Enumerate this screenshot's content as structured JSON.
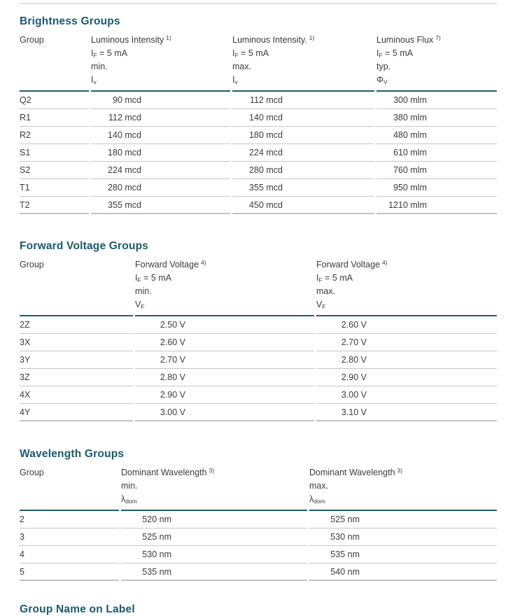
{
  "colors": {
    "heading": "#1b5a6d",
    "header_rule": "#235d6b",
    "row_rule": "#c6c6c6",
    "text": "#3c3c3c",
    "top_rule": "#dfe2ec"
  },
  "bottom_heading": "Group Name on Label",
  "tables": [
    {
      "name": "brightness-groups",
      "title": "Brightness Groups",
      "group_label": "Group",
      "columns": [
        {
          "title": "Luminous Intensity",
          "footnote": "1)",
          "condition": {
            "base": "I",
            "sub": "F",
            "rest": " = 5 mA"
          },
          "limit": "min.",
          "symbol": {
            "base": "I",
            "sub": "v"
          }
        },
        {
          "title": "Luminous Intensity.",
          "footnote": "1)",
          "condition": {
            "base": "I",
            "sub": "F",
            "rest": " = 5 mA"
          },
          "limit": "max.",
          "symbol": {
            "base": "I",
            "sub": "v"
          }
        },
        {
          "title": "Luminous Flux",
          "footnote": "7)",
          "condition": {
            "base": "I",
            "sub": "F",
            "rest": " = 5 mA"
          },
          "limit": "typ.",
          "symbol": {
            "base": "Φ",
            "sub": "V"
          }
        }
      ],
      "rows": [
        {
          "group": "Q2",
          "values": [
            "90 mcd",
            "112 mcd",
            "300 mlm"
          ]
        },
        {
          "group": "R1",
          "values": [
            "112 mcd",
            "140 mcd",
            "380 mlm"
          ]
        },
        {
          "group": "R2",
          "values": [
            "140 mcd",
            "180 mcd",
            "480 mlm"
          ]
        },
        {
          "group": "S1",
          "values": [
            "180 mcd",
            "224 mcd",
            "610 mlm"
          ]
        },
        {
          "group": "S2",
          "values": [
            "224 mcd",
            "280 mcd",
            "760 mlm"
          ]
        },
        {
          "group": "T1",
          "values": [
            "280 mcd",
            "355 mcd",
            "950 mlm"
          ]
        },
        {
          "group": "T2",
          "values": [
            "355 mcd",
            "450 mcd",
            "1210 mlm"
          ]
        }
      ]
    },
    {
      "name": "forward-voltage-groups",
      "title": "Forward Voltage Groups",
      "group_label": "Group",
      "columns": [
        {
          "title": "Forward Voltage",
          "footnote": "4)",
          "condition": {
            "base": "I",
            "sub": "F",
            "rest": " = 5 mA"
          },
          "limit": "min.",
          "symbol": {
            "base": "V",
            "sub": "F"
          }
        },
        {
          "title": "Forward Voltage",
          "footnote": "4)",
          "condition": {
            "base": "I",
            "sub": "F",
            "rest": " = 5 mA"
          },
          "limit": "max.",
          "symbol": {
            "base": "V",
            "sub": "F"
          }
        }
      ],
      "rows": [
        {
          "group": "2Z",
          "values": [
            "2.50 V",
            "2.60 V"
          ]
        },
        {
          "group": "3X",
          "values": [
            "2.60 V",
            "2.70 V"
          ]
        },
        {
          "group": "3Y",
          "values": [
            "2.70 V",
            "2.80 V"
          ]
        },
        {
          "group": "3Z",
          "values": [
            "2.80 V",
            "2.90 V"
          ]
        },
        {
          "group": "4X",
          "values": [
            "2.90 V",
            "3.00 V"
          ]
        },
        {
          "group": "4Y",
          "values": [
            "3.00 V",
            "3.10 V"
          ]
        }
      ]
    },
    {
      "name": "wavelength-groups",
      "title": "Wavelength Groups",
      "group_label": "Group",
      "columns": [
        {
          "title": "Dominant Wavelength",
          "footnote": "3)",
          "limit": "min.",
          "symbol": {
            "base": "λ",
            "sub": "dom"
          }
        },
        {
          "title": "Dominant Wavelength",
          "footnote": "3)",
          "limit": "max.",
          "symbol": {
            "base": "λ",
            "sub": "dom"
          }
        }
      ],
      "rows": [
        {
          "group": "2",
          "values": [
            "520 nm",
            "525 nm"
          ]
        },
        {
          "group": "3",
          "values": [
            "525 nm",
            "530 nm"
          ]
        },
        {
          "group": "4",
          "values": [
            "530 nm",
            "535 nm"
          ]
        },
        {
          "group": "5",
          "values": [
            "535 nm",
            "540 nm"
          ]
        }
      ]
    }
  ]
}
